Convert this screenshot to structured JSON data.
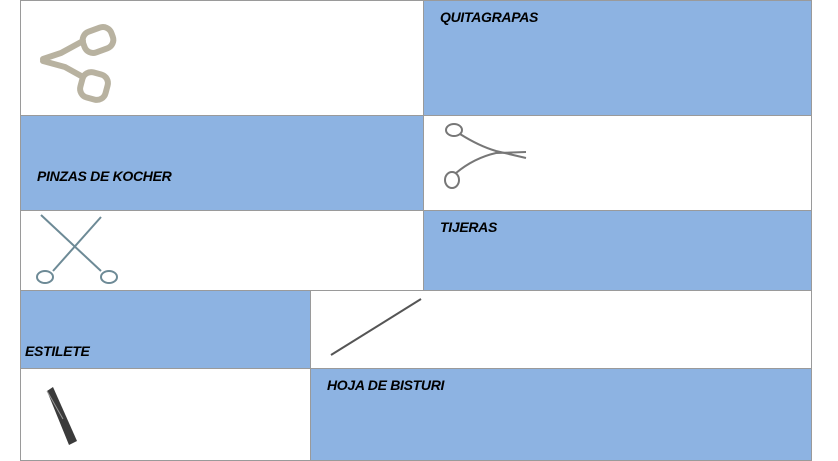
{
  "table": {
    "rows": [
      {
        "label": "QUITAGRAPAS"
      },
      {
        "label": "PINZAS DE KOCHER"
      },
      {
        "label": "TIJERAS"
      },
      {
        "label": "ESTILETE"
      },
      {
        "label": "HOJA DE BISTURI"
      }
    ]
  }
}
